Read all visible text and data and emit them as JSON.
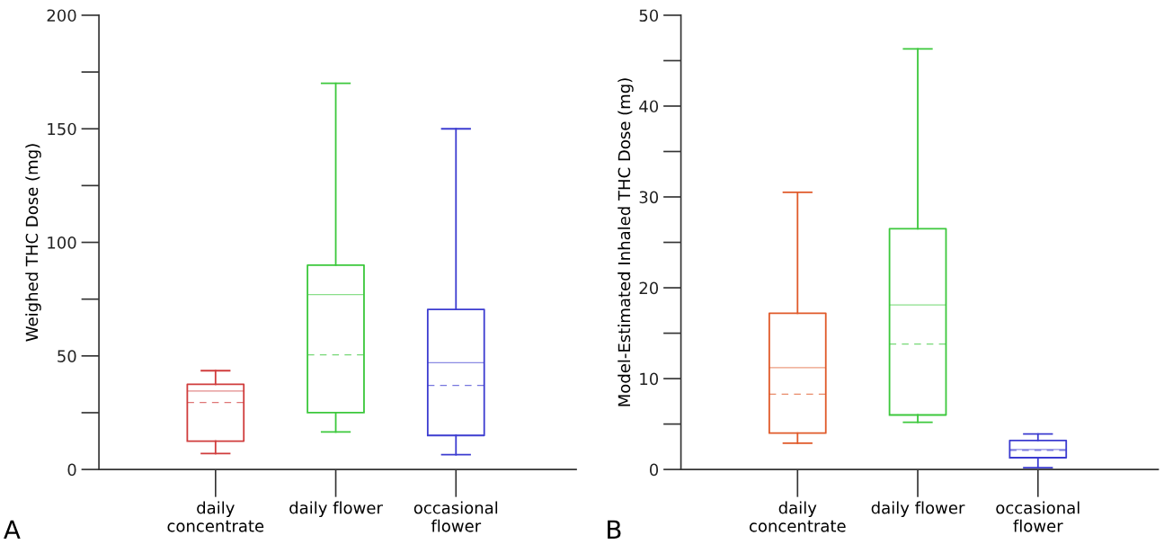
{
  "chart_data": [
    {
      "type": "box",
      "ylabel": "Weighed THC Dose (mg)",
      "annotations": [
        "A"
      ],
      "categories": [
        "daily\nconcentrate",
        "daily flower",
        "occasional\nflower"
      ],
      "colors": [
        "#d03c3c",
        "#3cc83c",
        "#3c3cd0"
      ],
      "boxes": [
        {
          "low": 7,
          "q1": 12.5,
          "median": 34.5,
          "q3": 37.5,
          "high": 43.5,
          "mean": 29.5
        },
        {
          "low": 16.5,
          "q1": 25,
          "median": 77,
          "q3": 90,
          "high": 170,
          "mean": 50.5
        },
        {
          "low": 6.5,
          "q1": 15,
          "median": 47,
          "q3": 70.5,
          "high": 150,
          "mean": 37
        }
      ],
      "ylim": [
        0,
        200
      ],
      "yticks": [
        0,
        50,
        100,
        150,
        200
      ],
      "grid": false
    },
    {
      "type": "box",
      "ylabel": "Model-Estimated Inhaled THC Dose (mg)",
      "annotations": [
        "B"
      ],
      "categories": [
        "daily\nconcentrate",
        "daily flower",
        "occasional\nflower"
      ],
      "colors": [
        "#e05a2a",
        "#3cc83c",
        "#3c3cd0"
      ],
      "boxes": [
        {
          "low": 2.9,
          "q1": 4.0,
          "median": 11.2,
          "q3": 17.2,
          "high": 30.5,
          "mean": 8.3
        },
        {
          "low": 5.2,
          "q1": 6.0,
          "median": 18.1,
          "q3": 26.5,
          "high": 46.3,
          "mean": 13.8
        },
        {
          "low": 0.2,
          "q1": 1.3,
          "median": 2.2,
          "q3": 3.2,
          "high": 3.9,
          "mean": 2.1
        }
      ],
      "ylim": [
        0,
        50
      ],
      "yticks": [
        0,
        10,
        20,
        30,
        40,
        50
      ],
      "grid": false
    }
  ]
}
